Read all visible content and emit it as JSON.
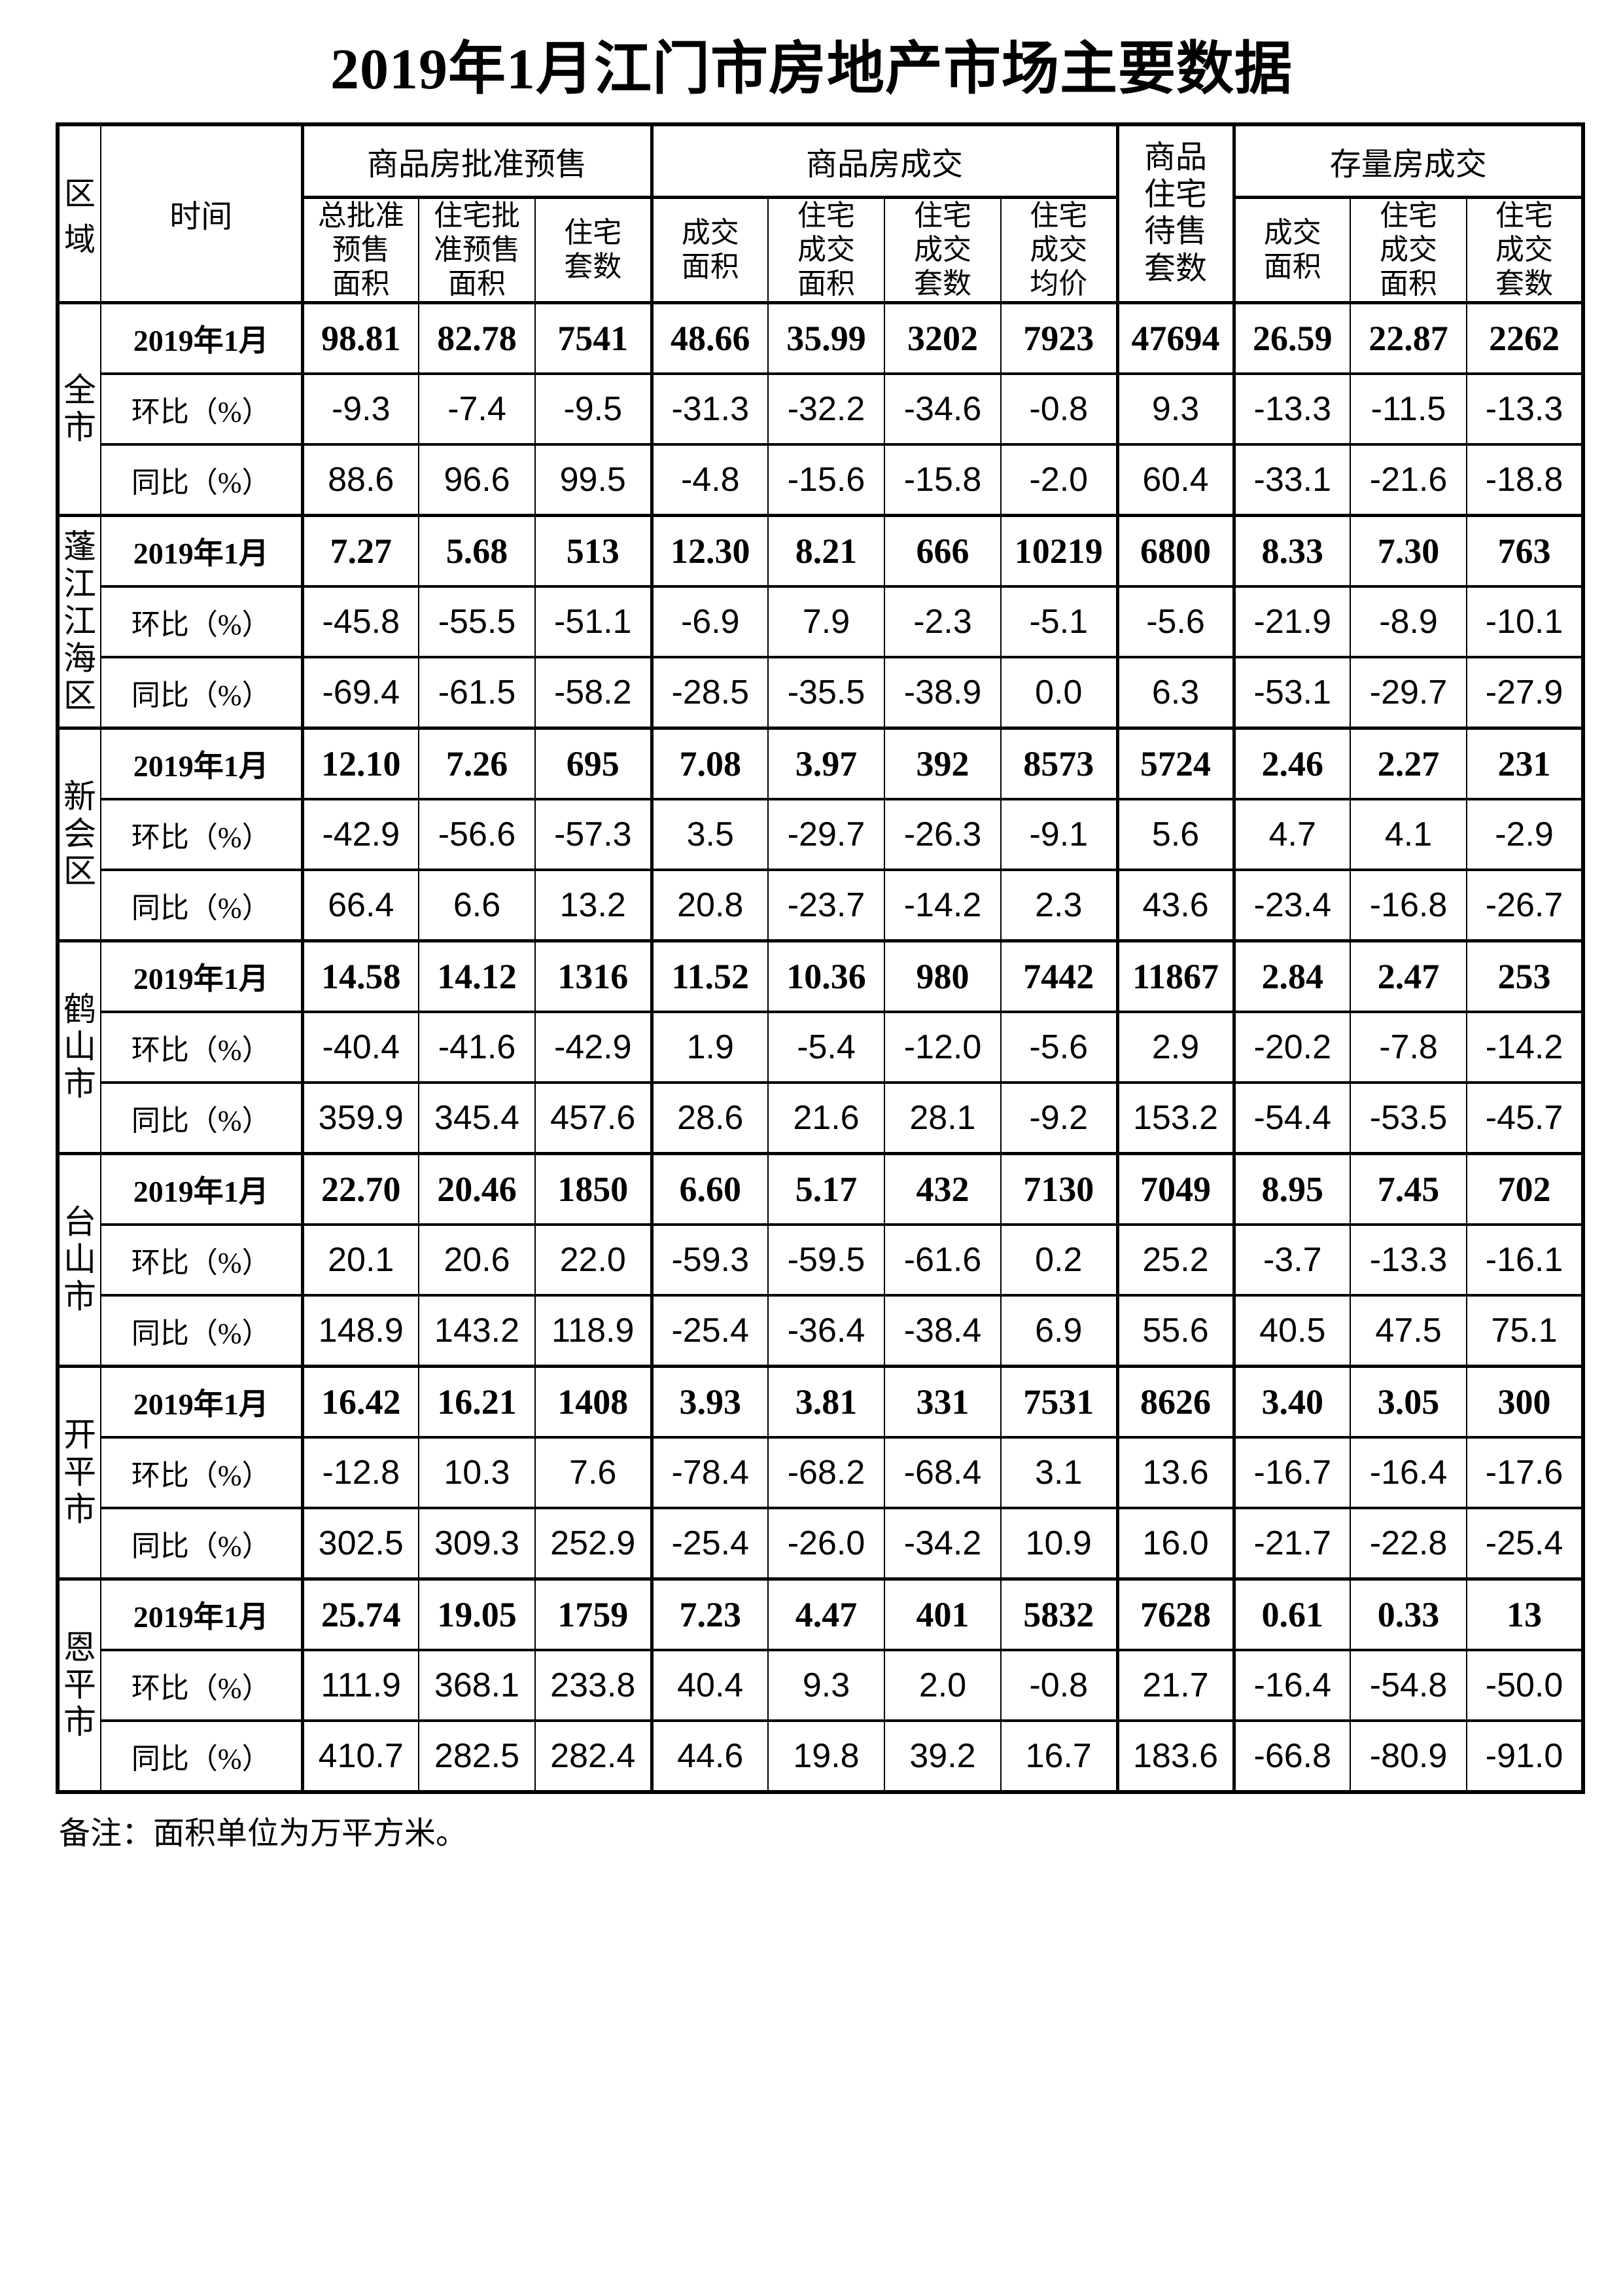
{
  "page": {
    "title": "2019年1月江门市房地产市场主要数据",
    "footnote": "备注：面积单位为万平方米。"
  },
  "table": {
    "corner_headers": {
      "region": "区\n域",
      "time": "时间"
    },
    "groups": {
      "presale": "商品房批准预售",
      "deal": "商品房成交",
      "pending": "商品\n住宅\n待售\n套数",
      "stock": "存量房成交"
    },
    "sub_headers": [
      "总批准\n预售\n面积",
      "住宅批\n准预售\n面积",
      "住宅\n套数",
      "成交\n面积",
      "住宅\n成交\n面积",
      "住宅\n成交\n套数",
      "住宅\n成交\n均价",
      "成交\n面积",
      "住宅\n成交\n面积",
      "住宅\n成交\n套数"
    ],
    "row_labels": [
      "2019年1月",
      "环比（%）",
      "同比（%）"
    ],
    "blocks": [
      {
        "region": "全\n市",
        "rows": [
          [
            "98.81",
            "82.78",
            "7541",
            "48.66",
            "35.99",
            "3202",
            "7923",
            "47694",
            "26.59",
            "22.87",
            "2262"
          ],
          [
            "-9.3",
            "-7.4",
            "-9.5",
            "-31.3",
            "-32.2",
            "-34.6",
            "-0.8",
            "9.3",
            "-13.3",
            "-11.5",
            "-13.3"
          ],
          [
            "88.6",
            "96.6",
            "99.5",
            "-4.8",
            "-15.6",
            "-15.8",
            "-2.0",
            "60.4",
            "-33.1",
            "-21.6",
            "-18.8"
          ]
        ]
      },
      {
        "region": "蓬\n江\n江\n海\n区",
        "rows": [
          [
            "7.27",
            "5.68",
            "513",
            "12.30",
            "8.21",
            "666",
            "10219",
            "6800",
            "8.33",
            "7.30",
            "763"
          ],
          [
            "-45.8",
            "-55.5",
            "-51.1",
            "-6.9",
            "7.9",
            "-2.3",
            "-5.1",
            "-5.6",
            "-21.9",
            "-8.9",
            "-10.1"
          ],
          [
            "-69.4",
            "-61.5",
            "-58.2",
            "-28.5",
            "-35.5",
            "-38.9",
            "0.0",
            "6.3",
            "-53.1",
            "-29.7",
            "-27.9"
          ]
        ]
      },
      {
        "region": "新\n会\n区",
        "rows": [
          [
            "12.10",
            "7.26",
            "695",
            "7.08",
            "3.97",
            "392",
            "8573",
            "5724",
            "2.46",
            "2.27",
            "231"
          ],
          [
            "-42.9",
            "-56.6",
            "-57.3",
            "3.5",
            "-29.7",
            "-26.3",
            "-9.1",
            "5.6",
            "4.7",
            "4.1",
            "-2.9"
          ],
          [
            "66.4",
            "6.6",
            "13.2",
            "20.8",
            "-23.7",
            "-14.2",
            "2.3",
            "43.6",
            "-23.4",
            "-16.8",
            "-26.7"
          ]
        ]
      },
      {
        "region": "鹤\n山\n市",
        "rows": [
          [
            "14.58",
            "14.12",
            "1316",
            "11.52",
            "10.36",
            "980",
            "7442",
            "11867",
            "2.84",
            "2.47",
            "253"
          ],
          [
            "-40.4",
            "-41.6",
            "-42.9",
            "1.9",
            "-5.4",
            "-12.0",
            "-5.6",
            "2.9",
            "-20.2",
            "-7.8",
            "-14.2"
          ],
          [
            "359.9",
            "345.4",
            "457.6",
            "28.6",
            "21.6",
            "28.1",
            "-9.2",
            "153.2",
            "-54.4",
            "-53.5",
            "-45.7"
          ]
        ]
      },
      {
        "region": "台\n山\n市",
        "rows": [
          [
            "22.70",
            "20.46",
            "1850",
            "6.60",
            "5.17",
            "432",
            "7130",
            "7049",
            "8.95",
            "7.45",
            "702"
          ],
          [
            "20.1",
            "20.6",
            "22.0",
            "-59.3",
            "-59.5",
            "-61.6",
            "0.2",
            "25.2",
            "-3.7",
            "-13.3",
            "-16.1"
          ],
          [
            "148.9",
            "143.2",
            "118.9",
            "-25.4",
            "-36.4",
            "-38.4",
            "6.9",
            "55.6",
            "40.5",
            "47.5",
            "75.1"
          ]
        ]
      },
      {
        "region": "开\n平\n市",
        "rows": [
          [
            "16.42",
            "16.21",
            "1408",
            "3.93",
            "3.81",
            "331",
            "7531",
            "8626",
            "3.40",
            "3.05",
            "300"
          ],
          [
            "-12.8",
            "10.3",
            "7.6",
            "-78.4",
            "-68.2",
            "-68.4",
            "3.1",
            "13.6",
            "-16.7",
            "-16.4",
            "-17.6"
          ],
          [
            "302.5",
            "309.3",
            "252.9",
            "-25.4",
            "-26.0",
            "-34.2",
            "10.9",
            "16.0",
            "-21.7",
            "-22.8",
            "-25.4"
          ]
        ]
      },
      {
        "region": "恩\n平\n市",
        "rows": [
          [
            "25.74",
            "19.05",
            "1759",
            "7.23",
            "4.47",
            "401",
            "5832",
            "7628",
            "0.61",
            "0.33",
            "13"
          ],
          [
            "111.9",
            "368.1",
            "233.8",
            "40.4",
            "9.3",
            "2.0",
            "-0.8",
            "21.7",
            "-16.4",
            "-54.8",
            "-50.0"
          ],
          [
            "410.7",
            "282.5",
            "282.4",
            "44.6",
            "19.8",
            "39.2",
            "16.7",
            "183.6",
            "-66.8",
            "-80.9",
            "-91.0"
          ]
        ]
      }
    ]
  }
}
